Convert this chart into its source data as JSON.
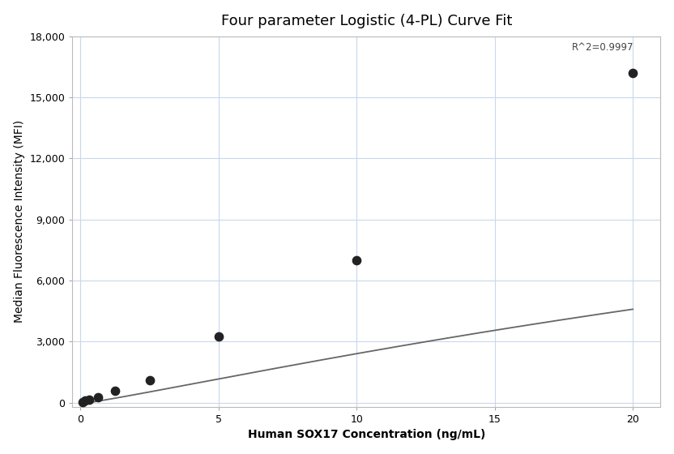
{
  "title": "Four parameter Logistic (4-PL) Curve Fit",
  "xlabel": "Human SOX17 Concentration (ng/mL)",
  "ylabel": "Median Fluorescence Intensity (MFI)",
  "scatter_x": [
    0.078,
    0.156,
    0.313,
    0.625,
    1.25,
    2.5,
    5.0,
    10.0,
    20.0
  ],
  "scatter_y": [
    30,
    90,
    150,
    280,
    580,
    1100,
    3250,
    7000,
    16200
  ],
  "xlim": [
    -0.3,
    21
  ],
  "ylim": [
    -200,
    18000
  ],
  "yticks": [
    0,
    3000,
    6000,
    9000,
    12000,
    15000,
    18000
  ],
  "xticks": [
    0,
    5,
    10,
    15,
    20
  ],
  "r_squared_text": "R^2=0.9997",
  "dot_color": "#222222",
  "dot_size": 55,
  "line_color": "#666666",
  "line_width": 1.3,
  "grid_color": "#c8d8ec",
  "background_color": "#ffffff",
  "title_fontsize": 13,
  "label_fontsize": 10,
  "tick_fontsize": 9,
  "4pl_A": -50.0,
  "4pl_B": 1.12,
  "4pl_C": 55.0,
  "4pl_D": 19000.0
}
